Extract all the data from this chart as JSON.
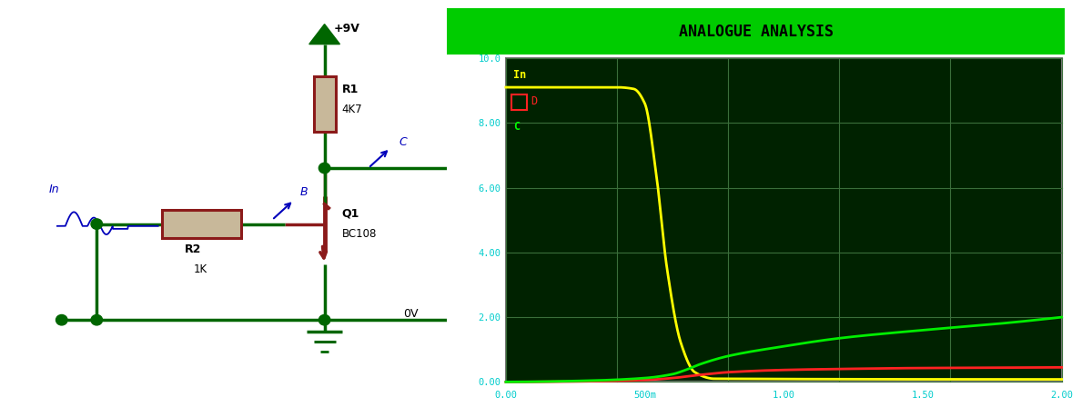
{
  "title": "ANALOGUE ANALYSIS",
  "title_bg": "#00CC00",
  "plot_bg": "#002200",
  "outer_bg": "#2e7a2e",
  "grid_color": "#336633",
  "tick_color": "#00CCCC",
  "ylabel_vals": [
    "0.00",
    "2.00",
    "4.00",
    "6.00",
    "8.00",
    "10.0"
  ],
  "xlabel_vals": [
    "0.00",
    "500m",
    "1.00",
    "1.50",
    "2.00"
  ],
  "xlim": [
    0.0,
    2.0
  ],
  "ylim": [
    0.0,
    10.0
  ],
  "legend_labels": [
    "In",
    "D",
    "C"
  ],
  "legend_colors": [
    "#FFFF00",
    "#FF2222",
    "#00FF00"
  ],
  "curve_yellow_x": [
    0.0,
    0.4,
    0.46,
    0.5,
    0.54,
    0.58,
    0.63,
    0.68,
    0.75,
    2.0
  ],
  "curve_yellow_y": [
    9.1,
    9.1,
    9.05,
    8.6,
    6.5,
    3.5,
    1.2,
    0.3,
    0.1,
    0.08
  ],
  "curve_red_x": [
    0.0,
    0.3,
    0.5,
    0.6,
    0.7,
    0.8,
    1.0,
    1.2,
    1.5,
    1.8,
    2.0
  ],
  "curve_red_y": [
    0.0,
    0.02,
    0.06,
    0.12,
    0.22,
    0.3,
    0.37,
    0.4,
    0.43,
    0.44,
    0.45
  ],
  "curve_green_x": [
    0.0,
    0.3,
    0.5,
    0.6,
    0.65,
    0.7,
    0.8,
    1.0,
    1.2,
    1.5,
    1.8,
    2.0
  ],
  "curve_green_y": [
    0.0,
    0.04,
    0.12,
    0.24,
    0.38,
    0.55,
    0.8,
    1.1,
    1.35,
    1.6,
    1.82,
    2.0
  ],
  "wire_color": "#006600",
  "resistor_fill": "#C8B89A",
  "resistor_border": "#8B1A1A",
  "transistor_color": "#8B1A1A",
  "label_color": "#000000",
  "blue_label": "#0000BB",
  "supply_label": "+9V",
  "gnd_label": "0V",
  "R1_label": "R1",
  "R1_val": "4K7",
  "R2_label": "R2",
  "R2_val": "1K",
  "Q1_label": "Q1",
  "Q1_val": "BC108",
  "node_color": "#004400"
}
